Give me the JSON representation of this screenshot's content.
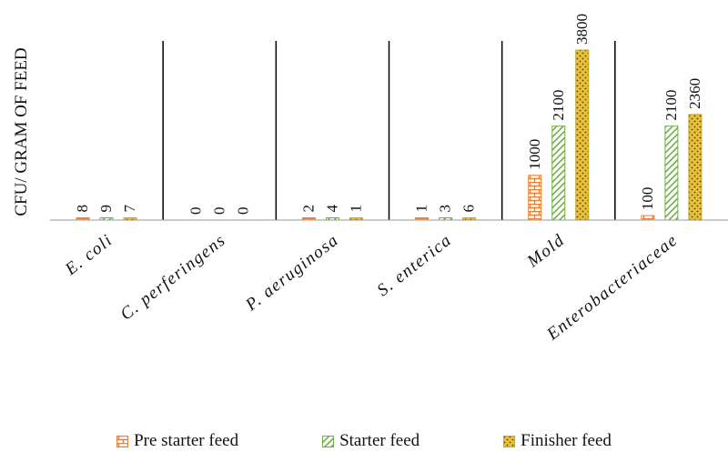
{
  "chart_data": {
    "type": "bar",
    "title": "",
    "ylabel": "CFU/ GRAM OF FEED",
    "xlabel": "",
    "categories": [
      "E. coli",
      "C. perferingens",
      "P. aeruginosa",
      "S. enterica",
      "Mold",
      "Enterobacteriaceae"
    ],
    "series": [
      {
        "name": "Pre starter feed",
        "values": [
          8,
          0,
          2,
          1,
          1000,
          100
        ],
        "color": "#ED7D31",
        "pattern": "brick"
      },
      {
        "name": "Starter feed",
        "values": [
          9,
          0,
          4,
          3,
          2100,
          2100
        ],
        "color": "#70AD47",
        "pattern": "diagonal"
      },
      {
        "name": "Finisher feed",
        "values": [
          7,
          0,
          1,
          6,
          3800,
          2360
        ],
        "color": "#C9A227",
        "pattern": "dots"
      }
    ],
    "ylim": [
      0,
      3800
    ],
    "grid": false,
    "category_separators": true,
    "legend_position": "bottom"
  }
}
